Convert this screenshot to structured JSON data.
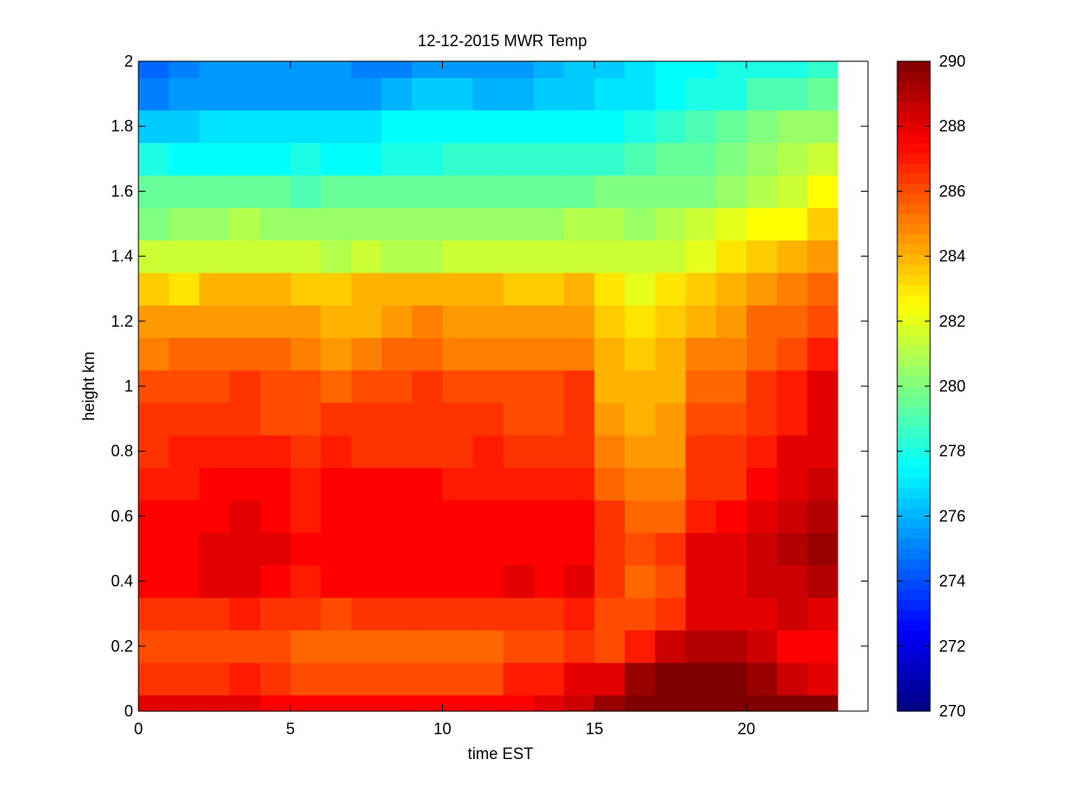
{
  "chart_data": {
    "type": "heatmap",
    "title": "12-12-2015 MWR Temp",
    "xlabel": "time EST",
    "ylabel": "height km",
    "xlim": [
      0,
      24
    ],
    "ylim": [
      0,
      2
    ],
    "x_ticks": [
      0,
      5,
      10,
      15,
      20
    ],
    "y_ticks": [
      0,
      0.2,
      0.4,
      0.6,
      0.8,
      1,
      1.2,
      1.4,
      1.6,
      1.8,
      2
    ],
    "x_tick_labels": [
      "0",
      "5",
      "10",
      "15",
      "20"
    ],
    "y_tick_labels": [
      "0",
      "0.2",
      "0.4",
      "0.6",
      "0.8",
      "1",
      "1.2",
      "1.4",
      "1.6",
      "1.8",
      "2"
    ],
    "colormap": "jet",
    "clim": [
      270,
      290
    ],
    "colorbar_ticks": [
      270,
      272,
      274,
      276,
      278,
      280,
      282,
      284,
      286,
      288,
      290
    ],
    "colorbar_tick_labels": [
      "270",
      "272",
      "274",
      "276",
      "278",
      "280",
      "282",
      "284",
      "286",
      "288",
      "290"
    ],
    "grid": false,
    "x_centers": [
      0.5,
      1.5,
      2.5,
      3.5,
      4.5,
      5.5,
      6.5,
      7.5,
      8.5,
      9.5,
      10.5,
      11.5,
      12.5,
      13.5,
      14.5,
      15.5,
      16.5,
      17.5,
      18.5,
      19.5,
      20.5,
      21.5,
      22.5
    ],
    "y_edges": [
      0,
      0.05,
      0.15,
      0.25,
      0.35,
      0.45,
      0.55,
      0.65,
      0.75,
      0.85,
      0.95,
      1.05,
      1.15,
      1.25,
      1.35,
      1.45,
      1.55,
      1.65,
      1.75,
      1.85,
      1.95,
      2
    ],
    "values": [
      [
        288,
        288,
        288,
        288,
        287.5,
        287.5,
        287.5,
        287.5,
        287.5,
        287.5,
        287.5,
        287.5,
        287.5,
        288,
        288.5,
        289.5,
        290,
        290,
        290,
        290,
        290,
        290,
        290
      ],
      [
        286.5,
        286.5,
        286.5,
        287,
        286.5,
        286,
        286,
        286,
        286,
        286,
        286,
        286,
        287,
        287,
        288,
        288,
        289.5,
        290,
        290,
        290,
        289.5,
        288.5,
        288
      ],
      [
        286,
        286,
        286,
        286,
        286,
        285.5,
        285.5,
        285.5,
        285.5,
        285.5,
        285.5,
        285.5,
        286,
        286,
        286.5,
        286,
        287,
        288.5,
        289,
        289,
        288.5,
        287.5,
        287.5
      ],
      [
        286.5,
        286.5,
        286.5,
        287,
        286.5,
        286.5,
        286,
        286.5,
        286.5,
        286.5,
        286.5,
        286.5,
        286.5,
        286.5,
        287,
        286,
        286,
        286.5,
        288,
        288,
        288,
        288.5,
        288
      ],
      [
        287.5,
        287.5,
        288,
        288,
        287.5,
        287,
        287.5,
        287.5,
        287.5,
        287.5,
        287.5,
        287.5,
        288,
        287.5,
        288,
        286.5,
        285.5,
        286,
        288,
        288,
        288.5,
        288.5,
        289
      ],
      [
        287.5,
        287.5,
        288,
        288,
        288,
        287.5,
        287.5,
        287.5,
        287.5,
        287.5,
        287.5,
        287.5,
        287.5,
        287.5,
        287.5,
        286.5,
        286,
        286.5,
        288,
        288,
        288.5,
        289,
        289.5
      ],
      [
        287.5,
        287.5,
        287.5,
        288,
        287.5,
        287,
        287.5,
        287.5,
        287.5,
        287.5,
        287.5,
        287.5,
        287.5,
        287.5,
        287.5,
        286.5,
        285.5,
        285.5,
        287,
        287.5,
        288,
        288.5,
        289
      ],
      [
        287,
        287,
        287.5,
        287.5,
        287.5,
        287,
        287.5,
        287.5,
        287.5,
        287.5,
        287,
        287,
        287,
        287,
        287,
        285.5,
        285,
        285,
        286.5,
        286.5,
        287.5,
        288,
        288.5
      ],
      [
        286.5,
        287,
        287,
        287,
        287,
        286.5,
        287,
        286.5,
        286.5,
        286.5,
        286.5,
        287,
        286.5,
        286.5,
        286.5,
        285,
        284.5,
        284.5,
        286.5,
        286.5,
        287,
        288,
        288
      ],
      [
        286.5,
        286.5,
        286.5,
        286.5,
        286,
        286,
        286.5,
        286.5,
        286.5,
        286.5,
        286.5,
        286.5,
        286,
        286,
        286.5,
        284.5,
        284,
        284.5,
        286,
        286,
        286.5,
        287,
        288
      ],
      [
        286,
        286,
        286,
        286.5,
        286,
        286,
        285.5,
        286,
        286,
        286.5,
        286,
        286,
        286,
        286,
        286.5,
        284,
        284,
        284,
        285.5,
        285.5,
        286.5,
        287,
        288
      ],
      [
        285,
        285.5,
        285.5,
        285.5,
        285.5,
        285,
        284.5,
        285,
        285.5,
        285.5,
        285,
        285,
        285,
        285,
        285,
        284,
        283.5,
        284,
        285,
        285,
        285.5,
        286,
        287
      ],
      [
        284.5,
        284.5,
        284.5,
        284.5,
        284.5,
        284.5,
        284,
        284,
        284.5,
        285,
        284.5,
        284.5,
        284.5,
        284.5,
        284.5,
        283.5,
        283,
        283.5,
        284,
        284.5,
        285.5,
        285.5,
        286
      ],
      [
        283.5,
        283,
        284,
        284,
        284,
        283.5,
        283.5,
        284,
        284,
        284,
        284,
        284,
        283.5,
        283.5,
        284,
        283,
        282,
        283,
        283.5,
        284,
        284.5,
        285,
        285.5
      ],
      [
        281.5,
        281.5,
        281.5,
        281.5,
        281.5,
        281.5,
        281,
        281.5,
        281,
        281,
        281.5,
        281.5,
        281.5,
        281.5,
        281.5,
        281.5,
        281.5,
        281.5,
        282,
        283,
        283.5,
        284,
        284.5
      ],
      [
        280,
        280.5,
        280.5,
        281,
        280.5,
        280.5,
        280.5,
        280.5,
        280.5,
        280.5,
        280.5,
        280.5,
        280.5,
        280.5,
        281,
        281,
        280.5,
        281,
        281.5,
        282,
        282.5,
        282.5,
        283.5
      ],
      [
        279.5,
        279.5,
        279.5,
        279.5,
        279.5,
        279,
        279.5,
        279.5,
        279.5,
        279.5,
        279.5,
        279.5,
        279.5,
        279.5,
        279.5,
        280,
        280,
        280,
        280,
        280.5,
        281,
        281.5,
        282.5
      ],
      [
        278,
        277.5,
        277.5,
        277.5,
        277.5,
        278,
        277.5,
        277.5,
        278,
        278,
        278.5,
        278.5,
        278.5,
        278.5,
        278.5,
        278.5,
        279,
        279.5,
        279.5,
        280,
        280.5,
        281,
        281.5
      ],
      [
        276.5,
        276.5,
        277,
        277,
        277,
        277,
        277,
        277,
        277.5,
        277.5,
        277.5,
        277.5,
        277.5,
        277.5,
        277.5,
        277.5,
        278,
        278.5,
        279,
        279.5,
        280,
        280.5,
        280.5
      ],
      [
        275,
        275.5,
        275.5,
        275.5,
        275.5,
        275.5,
        275.5,
        275.5,
        276,
        276.5,
        276.5,
        276,
        276,
        276.5,
        276.5,
        277,
        277,
        277.5,
        278,
        278,
        279,
        279,
        279.5
      ],
      [
        274.5,
        275,
        275.5,
        275.5,
        275.5,
        275.5,
        275.5,
        275,
        275,
        275.5,
        275.5,
        275.5,
        275.5,
        276,
        276.5,
        276.5,
        277,
        277.5,
        277.5,
        278,
        278,
        278,
        278.5
      ]
    ]
  }
}
